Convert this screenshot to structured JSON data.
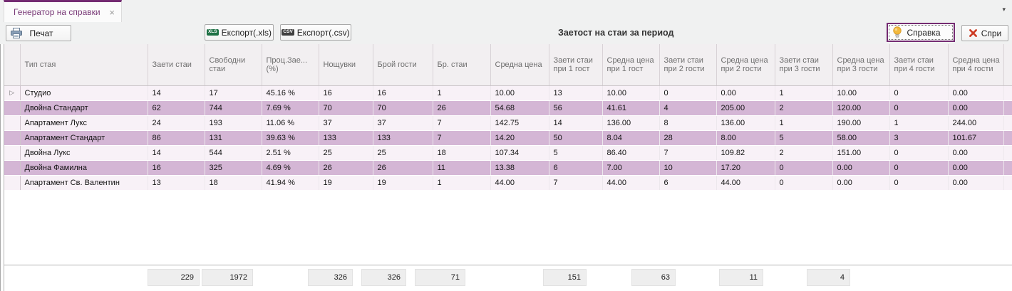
{
  "tab": {
    "title": "Генератор на справки",
    "close_glyph": "×",
    "overflow_glyph": "▾"
  },
  "toolbar": {
    "print_label": "Печат",
    "export_xls_label": "Експорт(.xls)",
    "xls_badge": "XLS",
    "export_csv_label": "Експорт(.csv)",
    "csv_badge": "CSV",
    "report_title": "Заетост на стаи за период",
    "run_label": "Справка",
    "stop_label": "Спри"
  },
  "colors": {
    "accent_purple": "#742b72",
    "tab_text": "#7a3b78",
    "row_light": "#f8f1f7",
    "row_alt": "#d4b6d5",
    "stop_red": "#cd3a22",
    "bulb_yellow": "#f2b93e",
    "xls_green": "#1e7145",
    "csv_dark": "#404040"
  },
  "table": {
    "columns": [
      "Тип стая",
      "Заети стаи",
      "Свободни стаи",
      "Проц.Зае... (%)",
      "Нощувки",
      "Брой гости",
      "Бр. стаи",
      "Средна цена",
      "Заети стаи при 1 гост",
      "Средна цена при 1 гост",
      "Заети стаи при 2 гости",
      "Средна цена при 2 гости",
      "Заети стаи при 3 гости",
      "Средна цена при 3 гости",
      "Заети стаи при 4 гости",
      "Средна цена при 4 гости"
    ],
    "rows": [
      [
        "Студио",
        "14",
        "17",
        "45.16 %",
        "16",
        "16",
        "1",
        "10.00",
        "13",
        "10.00",
        "0",
        "0.00",
        "1",
        "10.00",
        "0",
        "0.00"
      ],
      [
        "Двойна Стандарт",
        "62",
        "744",
        "7.69 %",
        "70",
        "70",
        "26",
        "54.68",
        "56",
        "41.61",
        "4",
        "205.00",
        "2",
        "120.00",
        "0",
        "0.00"
      ],
      [
        "Апартамент Лукс",
        "24",
        "193",
        "11.06 %",
        "37",
        "37",
        "7",
        "142.75",
        "14",
        "136.00",
        "8",
        "136.00",
        "1",
        "190.00",
        "1",
        "244.00"
      ],
      [
        "Апартамент Стандарт",
        "86",
        "131",
        "39.63 %",
        "133",
        "133",
        "7",
        "14.20",
        "50",
        "8.04",
        "28",
        "8.00",
        "5",
        "58.00",
        "3",
        "101.67"
      ],
      [
        "Двойна Лукс",
        "14",
        "544",
        "2.51 %",
        "25",
        "25",
        "18",
        "107.34",
        "5",
        "86.40",
        "7",
        "109.82",
        "2",
        "151.00",
        "0",
        "0.00"
      ],
      [
        "Двойна Фамилна",
        "16",
        "325",
        "4.69 %",
        "26",
        "26",
        "11",
        "13.38",
        "6",
        "7.00",
        "10",
        "17.20",
        "0",
        "0.00",
        "0",
        "0.00"
      ],
      [
        "Апартамент Св. Валентин",
        "13",
        "18",
        "41.94 %",
        "19",
        "19",
        "1",
        "44.00",
        "7",
        "44.00",
        "6",
        "44.00",
        "0",
        "0.00",
        "0",
        "0.00"
      ]
    ],
    "summary_totals": [
      "229",
      "1972",
      "326",
      "326",
      "71",
      "151",
      "63",
      "11",
      "4"
    ],
    "row_indicator_glyph": "▷"
  }
}
